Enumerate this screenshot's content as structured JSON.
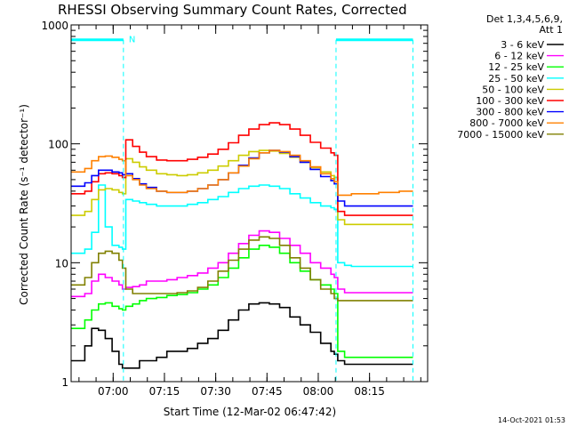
{
  "chart_data": {
    "type": "line",
    "title": "RHESSI Observing Summary Count Rates, Corrected",
    "xlabel": "Start Time (12-Mar-02 06:47:42)",
    "ylabel": "Corrected Count Rate (s⁻¹ detector⁻¹)",
    "yscale": "log",
    "ylim": [
      1,
      1000
    ],
    "xlim_minutes_after_start": [
      0,
      104.3
    ],
    "xtick_labels": [
      "07:00",
      "07:15",
      "07:30",
      "07:45",
      "08:00",
      "08:15"
    ],
    "xtick_offsets_minutes": [
      12.3,
      27.3,
      42.3,
      57.3,
      72.3,
      87.3
    ],
    "ytick_labels": [
      "1",
      "10",
      "100",
      "1000"
    ],
    "ytick_values": [
      1,
      10,
      100,
      1000
    ],
    "legend_header": [
      "Det 1,3,4,5,6,9,",
      "Att 1"
    ],
    "legend_position": "right",
    "night_marker_label": "N",
    "timestamp": "14-Oct-2021 01:53",
    "x_minutes": [
      0,
      4,
      6,
      8,
      10,
      12,
      14,
      15,
      16,
      18,
      20,
      22,
      25,
      28,
      31,
      34,
      37,
      40,
      43,
      46,
      49,
      52,
      55,
      58,
      61,
      64,
      67,
      70,
      73,
      76,
      77,
      78,
      80,
      82,
      84,
      86,
      88,
      90,
      92,
      94,
      96,
      98,
      100
    ],
    "series": [
      {
        "name": "3 - 6 keV",
        "color": "#000000",
        "values": [
          1.5,
          2,
          2.8,
          2.7,
          2.3,
          1.8,
          1.4,
          1.3,
          1.3,
          1.3,
          1.5,
          1.5,
          1.6,
          1.8,
          1.8,
          1.9,
          2.1,
          2.3,
          2.7,
          3.3,
          4,
          4.5,
          4.6,
          4.5,
          4.2,
          3.5,
          3,
          2.6,
          2.1,
          1.8,
          1.7,
          1.5,
          1.4,
          1.4,
          1.4,
          1.4,
          1.4,
          1.4,
          1.4,
          1.4,
          1.4,
          1.4,
          1.4
        ]
      },
      {
        "name": "6 - 12 keV",
        "color": "#ff00ff",
        "values": [
          5.2,
          5.5,
          7,
          8,
          7.5,
          7,
          6.5,
          6,
          6.2,
          6.3,
          6.5,
          7,
          7,
          7.2,
          7.5,
          7.8,
          8.2,
          9,
          10,
          12,
          14.5,
          17,
          18.5,
          18,
          16,
          14,
          12,
          10,
          9,
          8,
          7.5,
          6,
          5.6,
          5.6,
          5.6,
          5.6,
          5.6,
          5.6,
          5.6,
          5.6,
          5.6,
          5.6,
          5.6
        ]
      },
      {
        "name": "12 - 25 keV",
        "color": "#00ff00",
        "values": [
          2.8,
          3.3,
          4,
          4.5,
          4.6,
          4.3,
          4.1,
          4,
          4.3,
          4.5,
          4.8,
          5,
          5.1,
          5.3,
          5.4,
          5.6,
          6,
          6.5,
          7.5,
          9,
          11,
          13,
          14,
          13.5,
          12,
          10,
          8.5,
          7.2,
          6.5,
          6,
          5.5,
          1.8,
          1.6,
          1.6,
          1.6,
          1.6,
          1.6,
          1.6,
          1.6,
          1.6,
          1.6,
          1.6,
          1.6
        ]
      },
      {
        "name": "25 - 50 keV",
        "color": "#00ffff",
        "values": [
          12,
          13,
          18,
          45,
          20,
          14,
          13.5,
          13,
          34,
          33,
          32,
          31,
          30,
          30,
          30,
          31,
          32,
          34,
          36,
          39,
          42,
          44,
          45,
          44,
          42,
          38,
          35,
          32,
          30,
          29,
          28,
          10,
          9.5,
          9.3,
          9.3,
          9.3,
          9.3,
          9.3,
          9.3,
          9.3,
          9.3,
          9.3,
          9.3
        ]
      },
      {
        "name": "50 - 100 keV",
        "color": "#cccc00",
        "values": [
          25,
          27,
          34,
          41,
          42,
          41,
          39,
          38,
          75,
          70,
          64,
          60,
          56,
          55,
          54,
          55,
          57,
          60,
          65,
          72,
          80,
          86,
          88,
          87,
          83,
          77,
          70,
          63,
          58,
          54,
          52,
          23,
          21,
          21,
          21,
          21,
          21,
          21,
          21,
          21,
          21,
          21,
          21
        ]
      },
      {
        "name": "100 - 300 keV",
        "color": "#ff0000",
        "values": [
          38,
          40,
          48,
          56,
          57,
          56,
          54,
          52,
          108,
          95,
          85,
          78,
          73,
          72,
          72,
          74,
          77,
          82,
          90,
          102,
          118,
          133,
          145,
          150,
          145,
          133,
          118,
          103,
          92,
          84,
          80,
          27,
          25,
          25,
          25,
          25,
          25,
          25,
          25,
          25,
          25,
          25,
          25
        ]
      },
      {
        "name": "300 - 800 keV",
        "color": "#0000ff",
        "values": [
          44,
          47,
          54,
          60,
          60,
          58,
          57,
          55,
          56,
          51,
          46,
          43,
          40,
          39,
          39,
          40,
          42,
          45,
          50,
          57,
          66,
          76,
          84,
          88,
          85,
          78,
          70,
          61,
          53,
          49,
          46,
          33,
          30,
          30,
          30,
          30,
          30,
          30,
          30,
          30,
          30,
          30,
          30
        ]
      },
      {
        "name": "800 - 7000 keV",
        "color": "#ff8000",
        "values": [
          58,
          62,
          72,
          78,
          79,
          77,
          74,
          72,
          54,
          50,
          45,
          42,
          40,
          39,
          39,
          40,
          42,
          45,
          50,
          57,
          65,
          75,
          84,
          88,
          86,
          80,
          72,
          64,
          56,
          51,
          48,
          37,
          37,
          38,
          38,
          38,
          38,
          39,
          39,
          39,
          40,
          40,
          40
        ]
      },
      {
        "name": "7000 - 15000 keV",
        "color": "#808000",
        "values": [
          6.5,
          7.5,
          10,
          12,
          12.5,
          12,
          10.5,
          9,
          6,
          5.5,
          5.5,
          5.5,
          5.5,
          5.5,
          5.6,
          5.8,
          6.2,
          7,
          8.5,
          10.5,
          13,
          15.5,
          16.5,
          16,
          14,
          11,
          9,
          7.2,
          6,
          5.5,
          5,
          4.8,
          4.8,
          4.8,
          4.8,
          4.8,
          4.8,
          4.8,
          4.8,
          4.8,
          4.8,
          4.8,
          4.8
        ]
      }
    ],
    "attenuator_level_line": {
      "color": "#00ffff",
      "value": 750,
      "segments_minutes": [
        [
          0,
          15.3
        ],
        [
          77.5,
          100
        ]
      ]
    },
    "night_boundaries_minutes": [
      15.3,
      77.5,
      100
    ]
  }
}
